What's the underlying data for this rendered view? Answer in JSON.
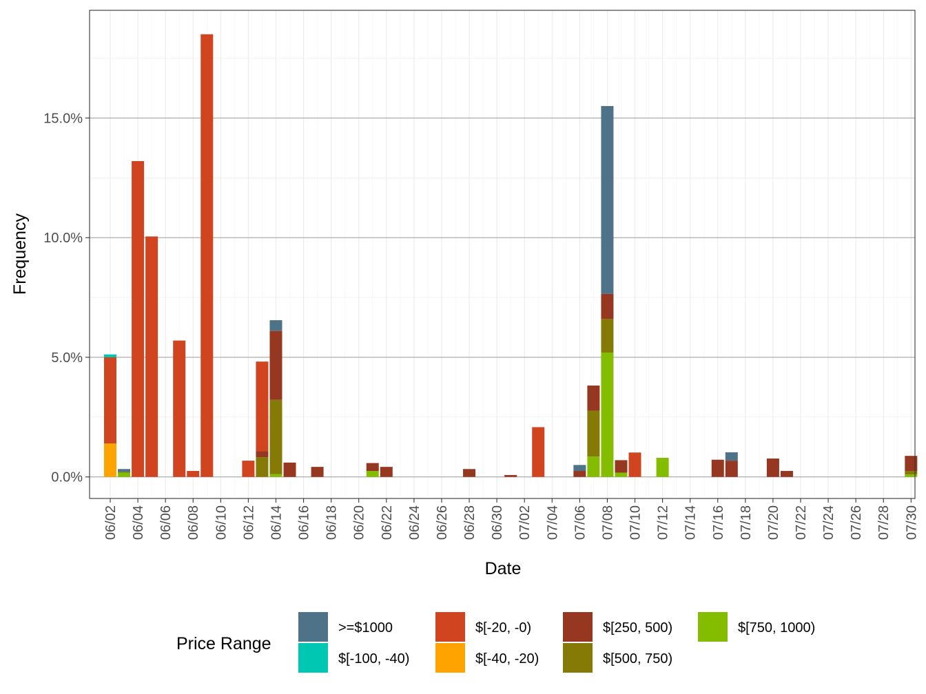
{
  "chart_data": {
    "type": "bar",
    "stacked": true,
    "xlabel": "Date",
    "ylabel": "Frequency",
    "ylim": [
      -0.9,
      19.5
    ],
    "y_ticks": [
      0,
      5,
      10,
      15
    ],
    "y_tick_labels": [
      "0.0%",
      "5.0%",
      "10.0%",
      "15.0%"
    ],
    "y_unit": "percent",
    "x_tick_labels": [
      "06/02",
      "06/04",
      "06/06",
      "06/08",
      "06/10",
      "06/12",
      "06/14",
      "06/16",
      "06/18",
      "06/20",
      "06/22",
      "06/24",
      "06/26",
      "06/28",
      "06/30",
      "07/02",
      "07/04",
      "07/06",
      "07/08",
      "07/10",
      "07/12",
      "07/14",
      "07/16",
      "07/18",
      "07/20",
      "07/22",
      "07/24",
      "07/26",
      "07/28",
      "07/30"
    ],
    "grid": true,
    "legend": {
      "title": "Price Range",
      "position": "bottom",
      "entries": [
        {
          "key": "ge1000",
          "label": ">=$1000",
          "color": "#4E7389"
        },
        {
          "key": "neg100_40",
          "label": "$[-100, -40)",
          "color": "#00C7B1"
        },
        {
          "key": "neg20_0",
          "label": "$[-20, -0)",
          "color": "#D04520"
        },
        {
          "key": "neg40_20",
          "label": "$[-40, -20)",
          "color": "#FFA300"
        },
        {
          "key": "r250_500",
          "label": "$[250, 500)",
          "color": "#963821"
        },
        {
          "key": "r500_750",
          "label": "$[500, 750)",
          "color": "#857A05"
        },
        {
          "key": "r750_1000",
          "label": "$[750, 1000)",
          "color": "#84BD00"
        }
      ]
    },
    "stack_order": [
      "r750_1000",
      "r500_750",
      "r250_500",
      "neg40_20",
      "neg20_0",
      "neg100_40",
      "ge1000"
    ],
    "bars": [
      {
        "date": "06/02",
        "segments": {
          "neg40_20": 1.4,
          "neg20_0": 3.6,
          "neg100_40": 0.12
        }
      },
      {
        "date": "06/03",
        "segments": {
          "r750_1000": 0.18,
          "r500_750": 0.03,
          "ge1000": 0.12
        }
      },
      {
        "date": "06/04",
        "segments": {
          "neg20_0": 13.2
        }
      },
      {
        "date": "06/05",
        "segments": {
          "neg20_0": 10.05
        }
      },
      {
        "date": "06/07",
        "segments": {
          "neg20_0": 5.7
        }
      },
      {
        "date": "06/08",
        "segments": {
          "neg20_0": 0.25
        }
      },
      {
        "date": "06/09",
        "segments": {
          "neg20_0": 18.5
        }
      },
      {
        "date": "06/12",
        "segments": {
          "neg20_0": 0.68
        }
      },
      {
        "date": "06/13",
        "segments": {
          "r500_750": 0.82,
          "r250_500": 0.25,
          "neg20_0": 3.75
        }
      },
      {
        "date": "06/14",
        "segments": {
          "r750_1000": 0.12,
          "r500_750": 3.1,
          "r250_500": 2.88,
          "ge1000": 0.45
        }
      },
      {
        "date": "06/15",
        "segments": {
          "r250_500": 0.6
        }
      },
      {
        "date": "06/17",
        "segments": {
          "r250_500": 0.42
        }
      },
      {
        "date": "06/21",
        "segments": {
          "r750_1000": 0.25,
          "r250_500": 0.33
        }
      },
      {
        "date": "06/22",
        "segments": {
          "r250_500": 0.42
        }
      },
      {
        "date": "06/28",
        "segments": {
          "r250_500": 0.33
        }
      },
      {
        "date": "07/01",
        "segments": {
          "r250_500": 0.08
        }
      },
      {
        "date": "07/03",
        "segments": {
          "neg20_0": 2.08
        }
      },
      {
        "date": "07/06",
        "segments": {
          "r250_500": 0.25,
          "ge1000": 0.25
        }
      },
      {
        "date": "07/07",
        "segments": {
          "r750_1000": 0.85,
          "r500_750": 1.92,
          "r250_500": 1.05
        }
      },
      {
        "date": "07/08",
        "segments": {
          "r750_1000": 5.2,
          "r500_750": 1.4,
          "r250_500": 1.05,
          "ge1000": 7.85
        }
      },
      {
        "date": "07/09",
        "segments": {
          "r750_1000": 0.18,
          "r250_500": 0.52
        }
      },
      {
        "date": "07/10",
        "segments": {
          "neg20_0": 1.02
        }
      },
      {
        "date": "07/12",
        "segments": {
          "r750_1000": 0.8
        }
      },
      {
        "date": "07/16",
        "segments": {
          "r250_500": 0.72
        }
      },
      {
        "date": "07/17",
        "segments": {
          "r250_500": 0.68,
          "ge1000": 0.35
        }
      },
      {
        "date": "07/20",
        "segments": {
          "r250_500": 0.77
        }
      },
      {
        "date": "07/21",
        "segments": {
          "r250_500": 0.25
        }
      },
      {
        "date": "07/30",
        "segments": {
          "r750_1000": 0.1,
          "r500_750": 0.15,
          "r250_500": 0.63
        }
      }
    ]
  }
}
